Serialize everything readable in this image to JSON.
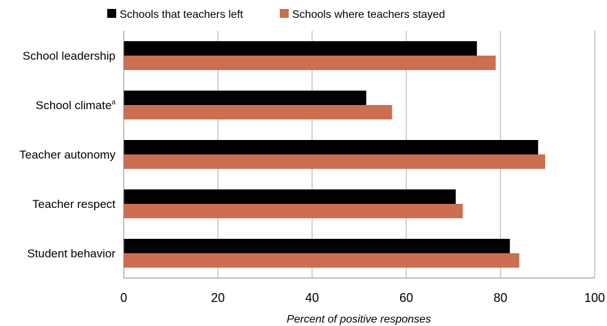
{
  "chart_data": {
    "type": "bar",
    "orientation": "horizontal",
    "title": "",
    "xlabel": "Percent of positive responses",
    "ylabel": "",
    "xlim": [
      0,
      100
    ],
    "xticks": [
      "0",
      "20",
      "40",
      "60",
      "80",
      "100"
    ],
    "grid": true,
    "legend_position": "top",
    "categories": [
      {
        "label": "School leadership",
        "sup": ""
      },
      {
        "label": "School climate",
        "sup": "a"
      },
      {
        "label": "Teacher autonomy",
        "sup": ""
      },
      {
        "label": "Teacher respect",
        "sup": ""
      },
      {
        "label": "Student behavior",
        "sup": ""
      }
    ],
    "series": [
      {
        "name": "Schools that teachers left",
        "color": "#000000",
        "values": [
          75,
          51.5,
          88,
          70.5,
          82
        ]
      },
      {
        "name": "Schools where teachers stayed",
        "color": "#cc6e4f",
        "values": [
          79,
          57,
          89.5,
          72,
          84
        ]
      }
    ]
  }
}
